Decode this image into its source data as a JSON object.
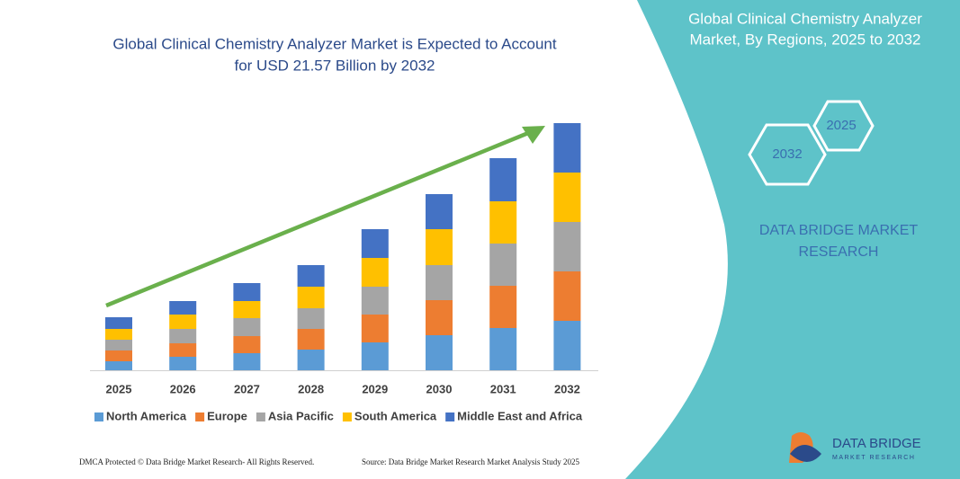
{
  "chart_data": {
    "type": "stacked_bar",
    "title": [
      "Global Clinical Chemistry Analyzer Market is Expected to Account",
      "for  USD 21.57 Billion by 2032"
    ],
    "categories": [
      "2025",
      "2026",
      "2027",
      "2028",
      "2029",
      "2030",
      "2031",
      "2032"
    ],
    "series": [
      {
        "name": "North America",
        "color": "#5b9bd5",
        "values": [
          10,
          15,
          19,
          23,
          31,
          39,
          47,
          55
        ]
      },
      {
        "name": "Europe",
        "color": "#ed7d31",
        "values": [
          12,
          15,
          19,
          23,
          31,
          39,
          47,
          55
        ]
      },
      {
        "name": "Asia Pacific",
        "color": "#a5a5a5",
        "values": [
          12,
          16,
          20,
          23,
          31,
          39,
          47,
          55
        ]
      },
      {
        "name": "South America",
        "color": "#ffc000",
        "values": [
          12,
          16,
          19,
          24,
          32,
          40,
          47,
          55
        ]
      },
      {
        "name": "Middle East and Africa",
        "color": "#4472c4",
        "values": [
          13,
          15,
          20,
          24,
          32,
          39,
          48,
          55
        ]
      }
    ],
    "legend": "bottom"
  },
  "panel": {
    "title": [
      "Global Clinical Chemistry Analyzer",
      "Market, By Regions, 2025 to 2032"
    ],
    "hexagons": [
      "2025",
      "2032"
    ],
    "brand": [
      "DATA BRIDGE MARKET",
      "RESEARCH"
    ]
  },
  "logo": {
    "name": "DATA BRIDGE",
    "tagline": "MARKET RESEARCH"
  },
  "footer": {
    "left": "DMCA Protected © Data Bridge Market Research- All Rights Reserved.",
    "right": "Source: Data Bridge Market Research  Market Analysis Study 2025"
  }
}
